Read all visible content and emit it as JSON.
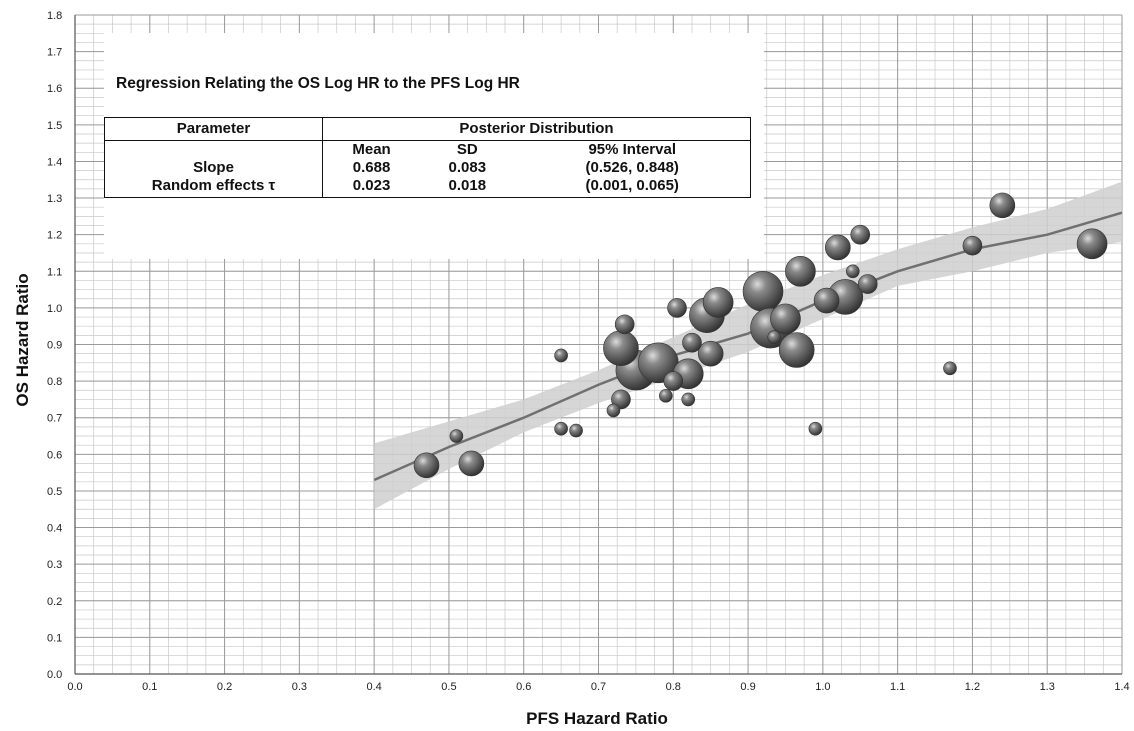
{
  "chart_data": {
    "type": "scatter",
    "xlabel": "PFS Hazard Ratio",
    "ylabel": "OS Hazard Ratio",
    "xlim": [
      0.0,
      1.4
    ],
    "ylim": [
      0.0,
      1.8
    ],
    "x_ticks": [
      "0.0",
      "0.1",
      "0.2",
      "0.3",
      "0.4",
      "0.5",
      "0.6",
      "0.7",
      "0.8",
      "0.9",
      "1.0",
      "1.1",
      "1.2",
      "1.3",
      "1.4"
    ],
    "y_ticks": [
      "0.0",
      "0.1",
      "0.2",
      "0.3",
      "0.4",
      "0.5",
      "0.6",
      "0.7",
      "0.8",
      "0.9",
      "1.0",
      "1.1",
      "1.2",
      "1.3",
      "1.4",
      "1.5",
      "1.6",
      "1.7",
      "1.8"
    ],
    "grid": true,
    "series": [
      {
        "type": "bubble",
        "points": [
          {
            "x": 0.47,
            "y": 0.57,
            "size": 3
          },
          {
            "x": 0.51,
            "y": 0.65,
            "size": 1
          },
          {
            "x": 0.53,
            "y": 0.575,
            "size": 3
          },
          {
            "x": 0.65,
            "y": 0.87,
            "size": 1
          },
          {
            "x": 0.65,
            "y": 0.67,
            "size": 1
          },
          {
            "x": 0.67,
            "y": 0.665,
            "size": 1
          },
          {
            "x": 0.72,
            "y": 0.72,
            "size": 1
          },
          {
            "x": 0.73,
            "y": 0.75,
            "size": 2
          },
          {
            "x": 0.735,
            "y": 0.955,
            "size": 2
          },
          {
            "x": 0.73,
            "y": 0.89,
            "size": 5
          },
          {
            "x": 0.75,
            "y": 0.83,
            "size": 6
          },
          {
            "x": 0.78,
            "y": 0.85,
            "size": 6
          },
          {
            "x": 0.79,
            "y": 0.76,
            "size": 1
          },
          {
            "x": 0.8,
            "y": 0.8,
            "size": 2
          },
          {
            "x": 0.805,
            "y": 1.0,
            "size": 2
          },
          {
            "x": 0.82,
            "y": 0.75,
            "size": 1
          },
          {
            "x": 0.825,
            "y": 0.905,
            "size": 2
          },
          {
            "x": 0.82,
            "y": 0.82,
            "size": 4
          },
          {
            "x": 0.85,
            "y": 0.875,
            "size": 3
          },
          {
            "x": 0.86,
            "y": 1.015,
            "size": 4
          },
          {
            "x": 0.845,
            "y": 0.98,
            "size": 5
          },
          {
            "x": 0.92,
            "y": 1.045,
            "size": 6
          },
          {
            "x": 0.93,
            "y": 0.945,
            "size": 6
          },
          {
            "x": 0.935,
            "y": 0.92,
            "size": 1
          },
          {
            "x": 0.95,
            "y": 0.97,
            "size": 4
          },
          {
            "x": 0.965,
            "y": 0.885,
            "size": 5
          },
          {
            "x": 0.97,
            "y": 1.1,
            "size": 4
          },
          {
            "x": 0.99,
            "y": 0.67,
            "size": 1
          },
          {
            "x": 1.005,
            "y": 1.02,
            "size": 3
          },
          {
            "x": 1.02,
            "y": 1.165,
            "size": 3
          },
          {
            "x": 1.03,
            "y": 1.03,
            "size": 5
          },
          {
            "x": 1.04,
            "y": 1.1,
            "size": 1
          },
          {
            "x": 1.05,
            "y": 1.2,
            "size": 2
          },
          {
            "x": 1.06,
            "y": 1.065,
            "size": 2
          },
          {
            "x": 1.17,
            "y": 0.835,
            "size": 1
          },
          {
            "x": 1.2,
            "y": 1.17,
            "size": 2
          },
          {
            "x": 1.24,
            "y": 1.28,
            "size": 3
          },
          {
            "x": 1.36,
            "y": 1.175,
            "size": 4
          }
        ]
      },
      {
        "type": "line",
        "x": [
          0.4,
          0.5,
          0.6,
          0.7,
          0.8,
          0.9,
          1.0,
          1.1,
          1.2,
          1.3,
          1.4
        ],
        "y": [
          0.53,
          0.62,
          0.7,
          0.79,
          0.87,
          0.93,
          1.02,
          1.1,
          1.16,
          1.2,
          1.26
        ]
      },
      {
        "type": "band",
        "x": [
          0.4,
          0.5,
          0.6,
          0.7,
          0.8,
          0.9,
          1.0,
          1.1,
          1.2,
          1.3,
          1.4
        ],
        "lower": [
          0.45,
          0.56,
          0.66,
          0.74,
          0.81,
          0.88,
          0.97,
          1.06,
          1.1,
          1.15,
          1.18
        ],
        "upper": [
          0.63,
          0.69,
          0.75,
          0.83,
          0.92,
          1.01,
          1.09,
          1.16,
          1.22,
          1.27,
          1.345
        ]
      }
    ],
    "inset": {
      "title": "Regression Relating the OS Log HR to the PFS Log HR",
      "header_param": "Parameter",
      "header_dist": "Posterior Distribution",
      "columns": [
        "Mean",
        "SD",
        "95% Interval"
      ],
      "rows": [
        {
          "label": "Slope",
          "mean": "0.688",
          "sd": "0.083",
          "interval": "(0.526, 0.848)"
        },
        {
          "label": "Random effects τ",
          "mean": "0.023",
          "sd": "0.018",
          "interval": "(0.001, 0.065)"
        }
      ]
    },
    "colors": {
      "bubble": "#5a5a5a",
      "line": "#707070",
      "band": "#cfcfcf",
      "grid_major": "#9a9a9a",
      "grid_minor": "#c8c8c8"
    }
  }
}
